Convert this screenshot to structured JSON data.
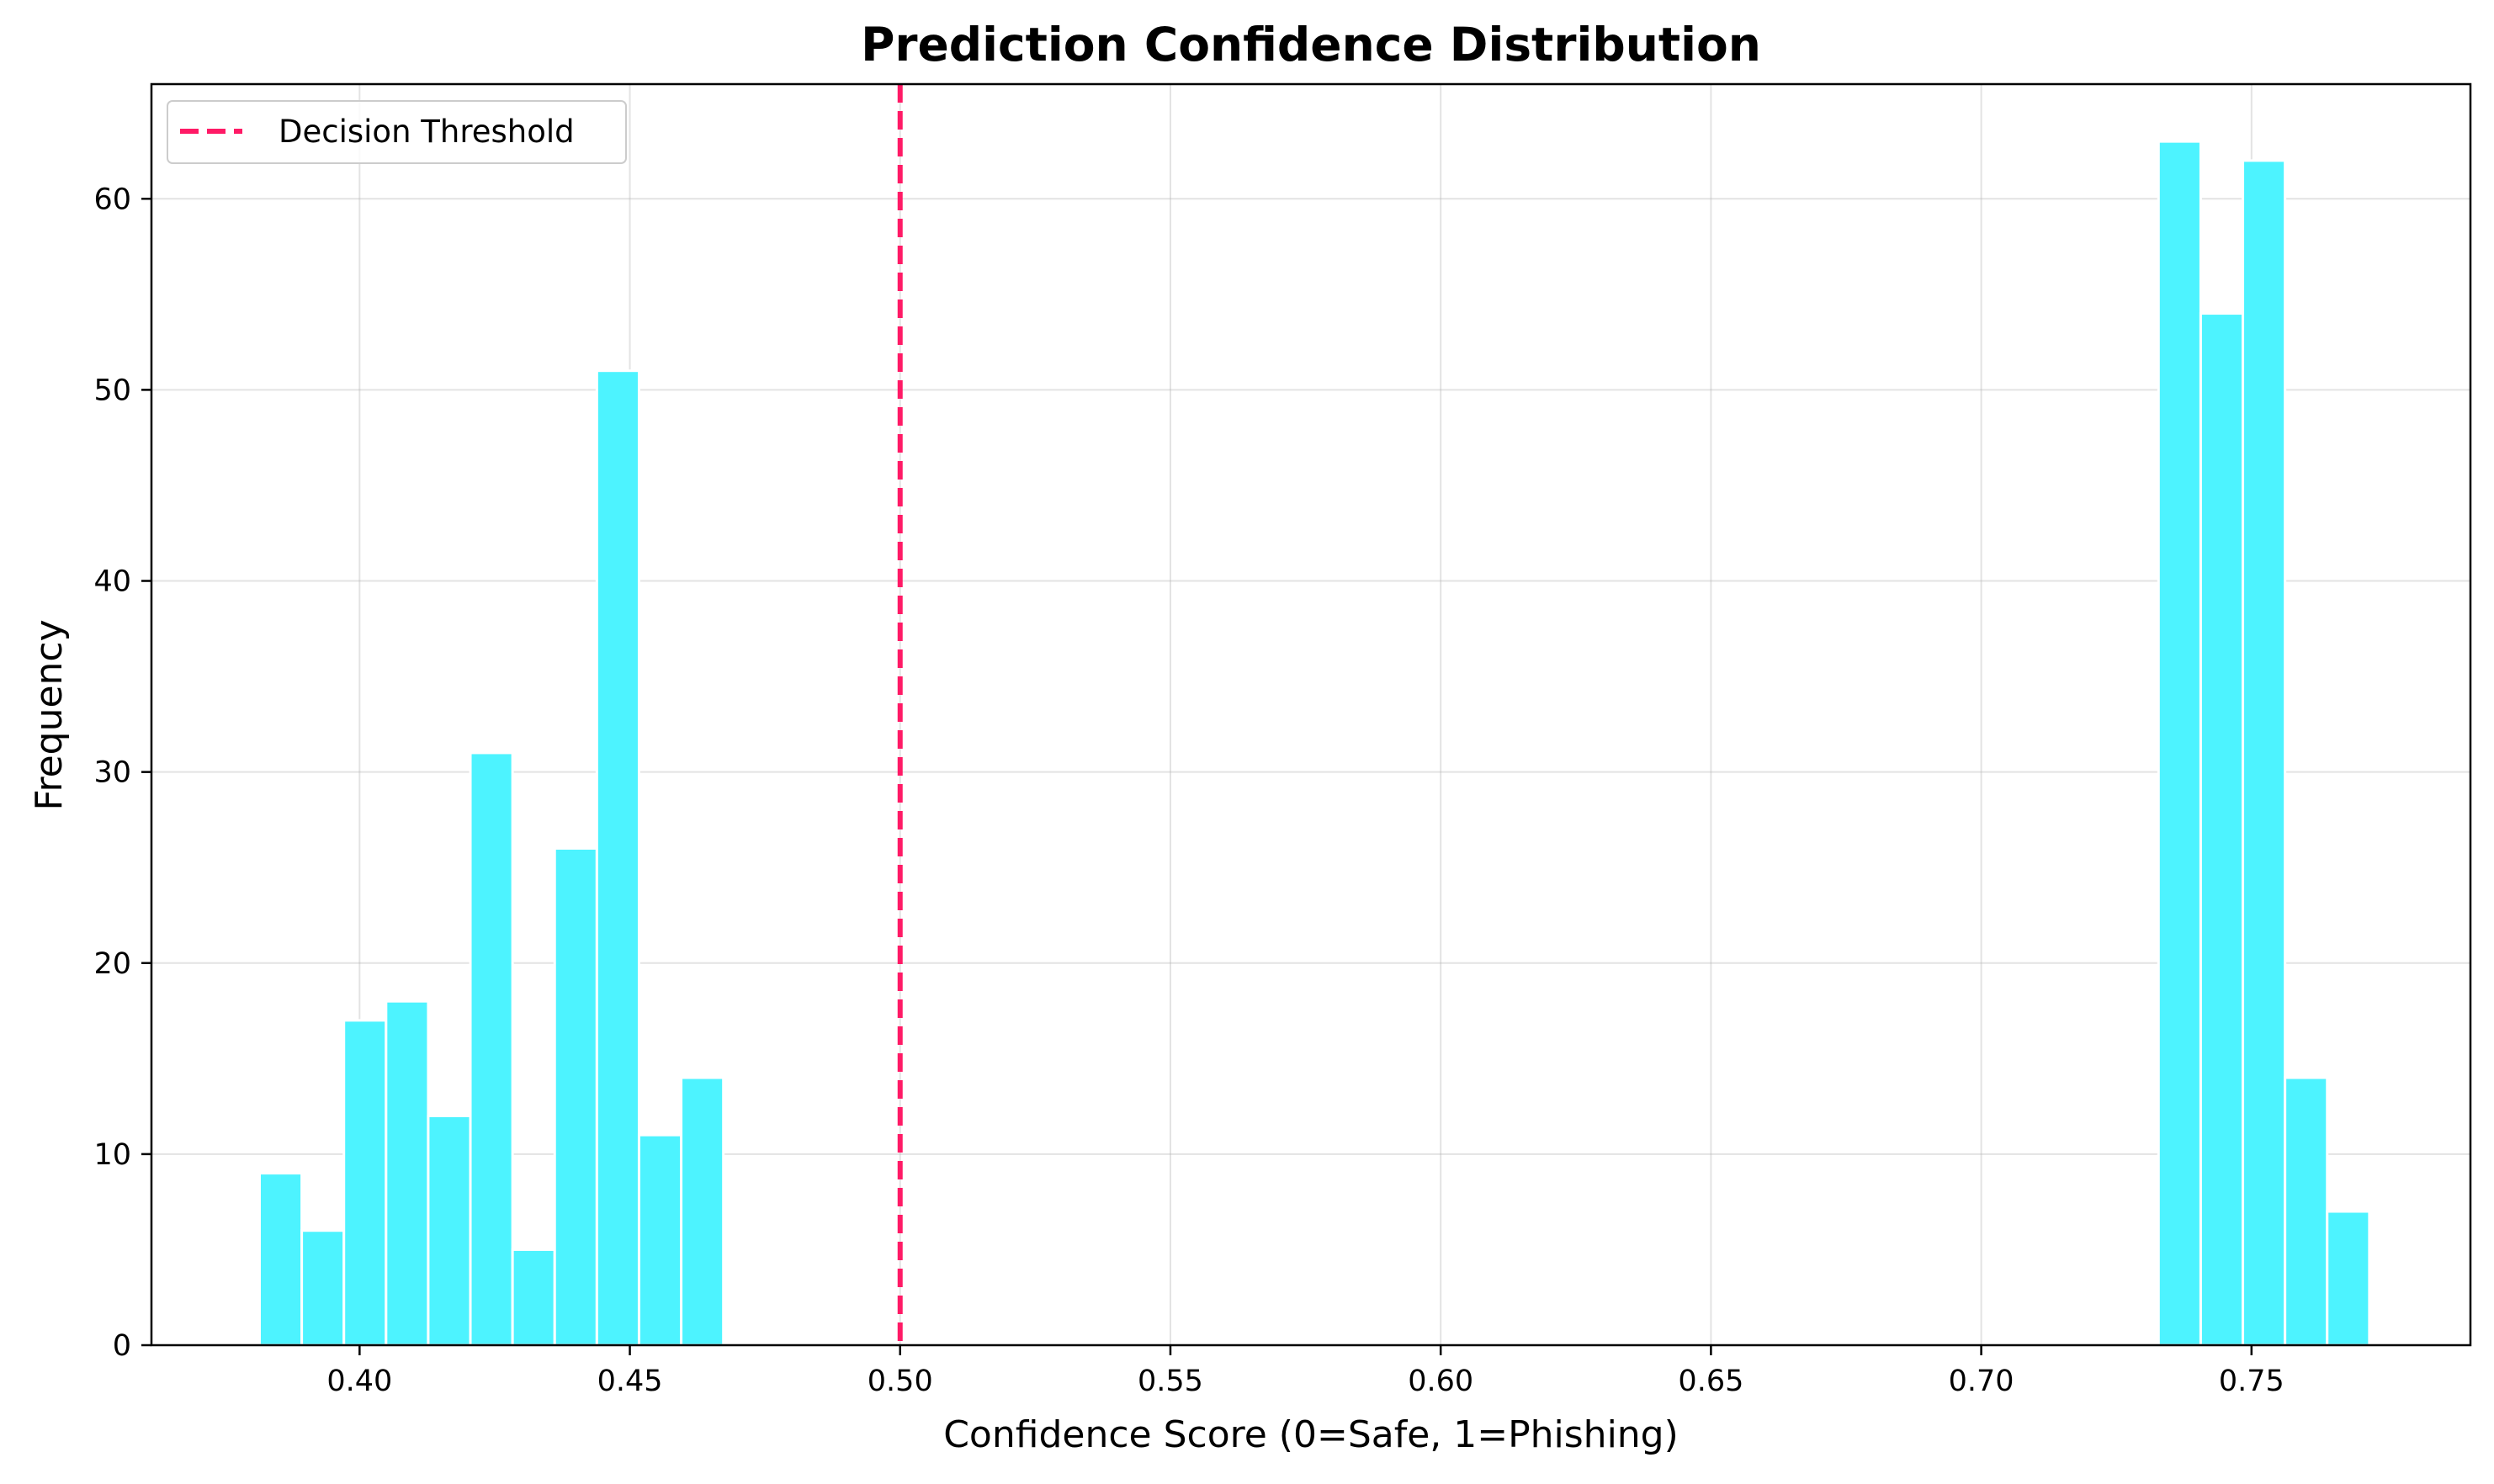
{
  "chart_data": {
    "type": "bar",
    "subtype": "histogram",
    "title": "Prediction Confidence Distribution",
    "xlabel": "Confidence Score (0=Safe, 1=Phishing)",
    "ylabel": "Frequency",
    "xlim": [
      0.3615,
      0.7905
    ],
    "ylim": [
      0,
      66
    ],
    "xticks": [
      0.4,
      0.45,
      0.5,
      0.55,
      0.6,
      0.65,
      0.7,
      0.75
    ],
    "xtick_labels": [
      "0.40",
      "0.45",
      "0.50",
      "0.55",
      "0.60",
      "0.65",
      "0.70",
      "0.75"
    ],
    "yticks": [
      0,
      10,
      20,
      30,
      40,
      50,
      60
    ],
    "ytick_labels": [
      "0",
      "10",
      "20",
      "30",
      "40",
      "50",
      "60"
    ],
    "grid": true,
    "bar_color": "#4DF3FF",
    "bar_edge_color": "#FFFFFF",
    "bins": [
      {
        "x0": 0.3815,
        "x1": 0.3893,
        "count": 9
      },
      {
        "x0": 0.3893,
        "x1": 0.3971,
        "count": 6
      },
      {
        "x0": 0.3971,
        "x1": 0.4049,
        "count": 17
      },
      {
        "x0": 0.4049,
        "x1": 0.4127,
        "count": 18
      },
      {
        "x0": 0.4127,
        "x1": 0.4205,
        "count": 12
      },
      {
        "x0": 0.4205,
        "x1": 0.4283,
        "count": 31
      },
      {
        "x0": 0.4283,
        "x1": 0.4361,
        "count": 5
      },
      {
        "x0": 0.4361,
        "x1": 0.4439,
        "count": 26
      },
      {
        "x0": 0.4439,
        "x1": 0.4517,
        "count": 51
      },
      {
        "x0": 0.4517,
        "x1": 0.4595,
        "count": 11
      },
      {
        "x0": 0.4595,
        "x1": 0.4673,
        "count": 14
      },
      {
        "x0": 0.7328,
        "x1": 0.7406,
        "count": 63
      },
      {
        "x0": 0.7406,
        "x1": 0.7484,
        "count": 54
      },
      {
        "x0": 0.7484,
        "x1": 0.7562,
        "count": 62
      },
      {
        "x0": 0.7562,
        "x1": 0.764,
        "count": 14
      },
      {
        "x0": 0.764,
        "x1": 0.7718,
        "count": 7
      }
    ],
    "threshold": {
      "value": 0.5,
      "label": "Decision Threshold",
      "color": "#FF1A66",
      "style": "dashed"
    },
    "legend": {
      "location": "upper-left",
      "entries": [
        "Decision Threshold"
      ]
    }
  }
}
